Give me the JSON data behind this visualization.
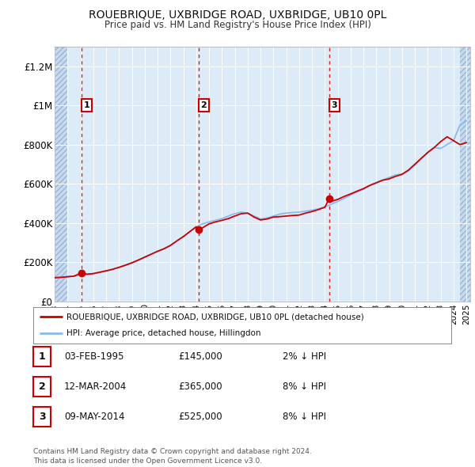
{
  "title": "ROUEBRIQUE, UXBRIDGE ROAD, UXBRIDGE, UB10 0PL",
  "subtitle": "Price paid vs. HM Land Registry's House Price Index (HPI)",
  "background_color": "#ffffff",
  "chart_bg_color": "#ddeaf7",
  "sale_line_color": "#cc0000",
  "hpi_line_color": "#88bbee",
  "vline_color": "#cc0000",
  "ylim": [
    0,
    1300000
  ],
  "yticks": [
    0,
    200000,
    400000,
    600000,
    800000,
    1000000,
    1200000
  ],
  "ytick_labels": [
    "£0",
    "£200K",
    "£400K",
    "£600K",
    "£800K",
    "£1M",
    "£1.2M"
  ],
  "xlim_start": 1993.0,
  "xlim_end": 2025.3,
  "xticks": [
    1993,
    1994,
    1995,
    1996,
    1997,
    1998,
    1999,
    2000,
    2001,
    2002,
    2003,
    2004,
    2005,
    2006,
    2007,
    2008,
    2009,
    2010,
    2011,
    2012,
    2013,
    2014,
    2015,
    2016,
    2017,
    2018,
    2019,
    2020,
    2021,
    2022,
    2023,
    2024,
    2025
  ],
  "legend_sale_label": "ROUEBRIQUE, UXBRIDGE ROAD, UXBRIDGE, UB10 0PL (detached house)",
  "legend_hpi_label": "HPI: Average price, detached house, Hillingdon",
  "table_rows": [
    {
      "num": "1",
      "date": "03-FEB-1995",
      "price": "£145,000",
      "hpi": "2% ↓ HPI"
    },
    {
      "num": "2",
      "date": "12-MAR-2004",
      "price": "£365,000",
      "hpi": "8% ↓ HPI"
    },
    {
      "num": "3",
      "date": "09-MAY-2014",
      "price": "£525,000",
      "hpi": "8% ↓ HPI"
    }
  ],
  "footnote": "Contains HM Land Registry data © Crown copyright and database right 2024.\nThis data is licensed under the Open Government Licence v3.0.",
  "sale_dates": [
    1995.09,
    2004.19,
    2014.35
  ],
  "sale_values": [
    145000,
    365000,
    525000
  ],
  "hpi_years": [
    1993.0,
    1993.5,
    1994.0,
    1994.5,
    1995.0,
    1995.5,
    1996.0,
    1996.5,
    1997.0,
    1997.5,
    1998.0,
    1998.5,
    1999.0,
    1999.5,
    2000.0,
    2000.5,
    2001.0,
    2001.5,
    2002.0,
    2002.5,
    2003.0,
    2003.5,
    2004.0,
    2004.5,
    2005.0,
    2005.5,
    2006.0,
    2006.5,
    2007.0,
    2007.5,
    2008.0,
    2008.5,
    2009.0,
    2009.5,
    2010.0,
    2010.5,
    2011.0,
    2011.5,
    2012.0,
    2012.5,
    2013.0,
    2013.5,
    2014.0,
    2014.5,
    2015.0,
    2015.5,
    2016.0,
    2016.5,
    2017.0,
    2017.5,
    2018.0,
    2018.5,
    2019.0,
    2019.5,
    2020.0,
    2020.5,
    2021.0,
    2021.5,
    2022.0,
    2022.5,
    2023.0,
    2023.5,
    2024.0,
    2024.5,
    2025.0
  ],
  "hpi_values": [
    120000,
    122000,
    125000,
    128000,
    132000,
    136000,
    141000,
    148000,
    155000,
    163000,
    173000,
    184000,
    196000,
    210000,
    225000,
    240000,
    255000,
    268000,
    285000,
    308000,
    330000,
    355000,
    380000,
    395000,
    405000,
    413000,
    422000,
    435000,
    447000,
    455000,
    450000,
    435000,
    420000,
    425000,
    435000,
    445000,
    450000,
    453000,
    455000,
    460000,
    465000,
    472000,
    482000,
    495000,
    510000,
    525000,
    542000,
    558000,
    572000,
    590000,
    605000,
    620000,
    632000,
    645000,
    650000,
    665000,
    695000,
    730000,
    760000,
    785000,
    780000,
    800000,
    820000,
    900000,
    920000
  ],
  "red_years": [
    1993.0,
    1993.5,
    1994.0,
    1994.5,
    1995.09,
    1995.5,
    1996.0,
    1996.5,
    1997.0,
    1997.5,
    1998.0,
    1998.5,
    1999.0,
    1999.5,
    2000.0,
    2000.5,
    2001.0,
    2001.5,
    2002.0,
    2002.5,
    2003.0,
    2003.5,
    2004.0,
    2004.19,
    2004.5,
    2005.0,
    2005.5,
    2006.0,
    2006.5,
    2007.0,
    2007.5,
    2008.0,
    2008.5,
    2009.0,
    2009.5,
    2010.0,
    2010.5,
    2011.0,
    2011.5,
    2012.0,
    2012.5,
    2013.0,
    2013.5,
    2014.0,
    2014.35,
    2014.5,
    2015.0,
    2015.5,
    2016.0,
    2016.5,
    2017.0,
    2017.5,
    2018.0,
    2018.5,
    2019.0,
    2019.5,
    2020.0,
    2020.5,
    2021.0,
    2021.5,
    2022.0,
    2022.5,
    2023.0,
    2023.5,
    2024.0,
    2024.5,
    2025.0
  ],
  "red_values": [
    120000,
    122000,
    125000,
    128000,
    145000,
    138000,
    141000,
    148000,
    155000,
    163000,
    173000,
    184000,
    196000,
    210000,
    225000,
    240000,
    255000,
    268000,
    285000,
    308000,
    330000,
    355000,
    380000,
    365000,
    375000,
    395000,
    405000,
    413000,
    422000,
    435000,
    447000,
    450000,
    430000,
    415000,
    420000,
    430000,
    432000,
    435000,
    438000,
    440000,
    450000,
    458000,
    468000,
    480000,
    525000,
    510000,
    520000,
    535000,
    548000,
    562000,
    575000,
    592000,
    605000,
    618000,
    625000,
    638000,
    648000,
    670000,
    700000,
    730000,
    760000,
    785000,
    815000,
    840000,
    820000,
    800000,
    810000
  ]
}
